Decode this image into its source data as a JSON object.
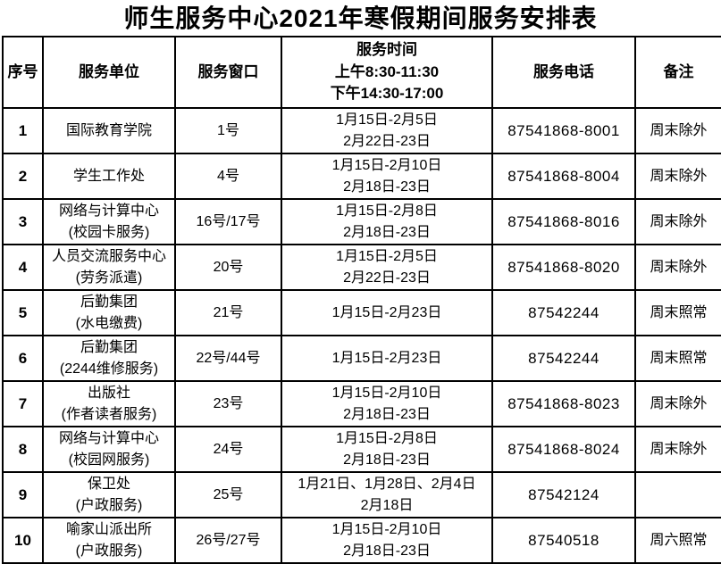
{
  "title": "师生服务中心2021年寒假期间服务安排表",
  "table": {
    "headers": {
      "index": "序号",
      "unit": "服务单位",
      "window": "服务窗口",
      "time_line1": "服务时间",
      "time_line2": "上午8:30-11:30",
      "time_line3": "下午14:30-17:00",
      "phone": "服务电话",
      "remark": "备注"
    },
    "rows": [
      {
        "index": "1",
        "unit_lines": [
          "国际教育学院"
        ],
        "window": "1号",
        "time_lines": [
          "1月15日-2月5日",
          "2月22日-23日"
        ],
        "phone": "87541868-8001",
        "remark": "周末除外"
      },
      {
        "index": "2",
        "unit_lines": [
          "学生工作处"
        ],
        "window": "4号",
        "time_lines": [
          "1月15日-2月10日",
          "2月18日-23日"
        ],
        "phone": "87541868-8004",
        "remark": "周末除外"
      },
      {
        "index": "3",
        "unit_lines": [
          "网络与计算中心",
          "(校园卡服务)"
        ],
        "window": "16号/17号",
        "time_lines": [
          "1月15日-2月8日",
          "2月18日-23日"
        ],
        "phone": "87541868-8016",
        "remark": "周末除外"
      },
      {
        "index": "4",
        "unit_lines": [
          "人员交流服务中心",
          "(劳务派遣)"
        ],
        "window": "20号",
        "time_lines": [
          "1月15日-2月5日",
          "2月22日-23日"
        ],
        "phone": "87541868-8020",
        "remark": "周末除外"
      },
      {
        "index": "5",
        "unit_lines": [
          "后勤集团",
          "(水电缴费)"
        ],
        "window": "21号",
        "time_lines": [
          "1月15日-2月23日"
        ],
        "phone": "87542244",
        "remark": "周末照常"
      },
      {
        "index": "6",
        "unit_lines": [
          "后勤集团",
          "(2244维修服务)"
        ],
        "window": "22号/44号",
        "time_lines": [
          "1月15日-2月23日"
        ],
        "phone": "87542244",
        "remark": "周末照常"
      },
      {
        "index": "7",
        "unit_lines": [
          "出版社",
          "(作者读者服务)"
        ],
        "window": "23号",
        "time_lines": [
          "1月15日-2月10日",
          "2月18日-23日"
        ],
        "phone": "87541868-8023",
        "remark": "周末除外"
      },
      {
        "index": "8",
        "unit_lines": [
          "网络与计算中心",
          "(校园网服务)"
        ],
        "window": "24号",
        "time_lines": [
          "1月15日-2月8日",
          "2月18日-23日"
        ],
        "phone": "87541868-8024",
        "remark": "周末除外"
      },
      {
        "index": "9",
        "unit_lines": [
          "保卫处",
          "(户政服务)"
        ],
        "window": "25号",
        "time_lines": [
          "1月21日、1月28日、2月4日",
          "2月18日"
        ],
        "phone": "87542124",
        "remark": ""
      },
      {
        "index": "10",
        "unit_lines": [
          "喻家山派出所",
          "(户政服务)"
        ],
        "window": "26号/27号",
        "time_lines": [
          "1月15日-2月10日",
          "2月18日-23日"
        ],
        "phone": "87540518",
        "remark": "周六照常"
      }
    ]
  }
}
